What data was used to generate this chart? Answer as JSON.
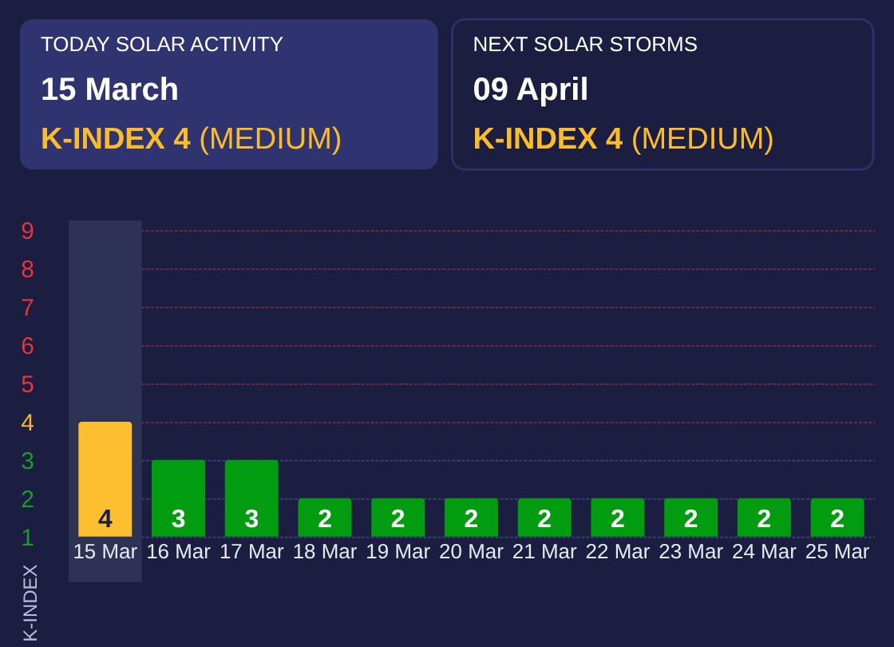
{
  "chart_data": [
    {
      "type": "other",
      "title": "TODAY SOLAR ACTIVITY",
      "subtitle": "15 March",
      "annotations": [
        "K-INDEX 4",
        "(MEDIUM)"
      ]
    },
    {
      "type": "other",
      "title": "NEXT SOLAR STORMS",
      "subtitle": "09 April",
      "annotations": [
        "K-INDEX 4",
        "(MEDIUM)"
      ]
    },
    {
      "type": "bar",
      "categories": [
        "15 Mar",
        "16 Mar",
        "17 Mar",
        "18 Mar",
        "19 Mar",
        "20 Mar",
        "21 Mar",
        "22 Mar",
        "23 Mar",
        "24 Mar",
        "25 Mar"
      ],
      "values": [
        4,
        3,
        3,
        2,
        2,
        2,
        2,
        2,
        2,
        2,
        2
      ],
      "colors": [
        "#fdbf2f",
        "#029c10",
        "#029c10",
        "#029c10",
        "#029c10",
        "#029c10",
        "#029c10",
        "#029c10",
        "#029c10",
        "#029c10",
        "#029c10"
      ],
      "ylabel": "K-INDEX",
      "ylim": [
        1,
        9
      ],
      "yticks": [
        1,
        2,
        3,
        4,
        5,
        6,
        7,
        8,
        9
      ],
      "grid": "y",
      "data_labels": true,
      "bands": [
        {
          "axis": "x",
          "from": "15 Mar",
          "to": "15 Mar",
          "color": "#2e3254"
        }
      ]
    }
  ]
}
